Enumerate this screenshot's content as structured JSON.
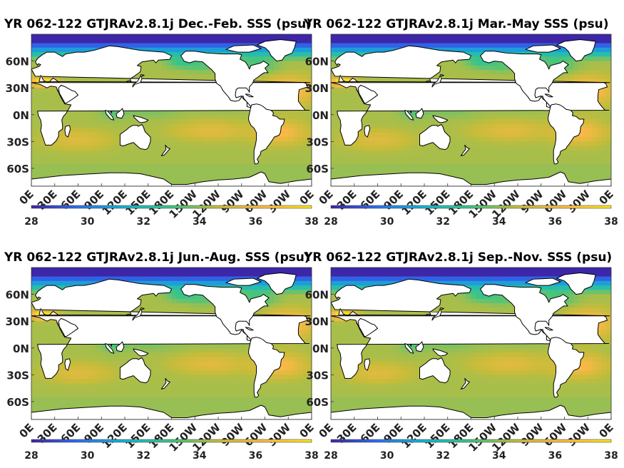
{
  "chart_data": [
    {
      "type": "heatmap",
      "title": "YR 062-122 GTJRAv2.8.1j Dec.-Feb. SSS (psu)",
      "x_tick_labels": [
        "0E",
        "30E",
        "60E",
        "90E",
        "120E",
        "150E",
        "180E",
        "150W",
        "120W",
        "90W",
        "60W",
        "30W",
        "0E"
      ],
      "y_tick_labels": [
        "60N",
        "30N",
        "0N",
        "30S",
        "60S"
      ],
      "colorbar_ticks": [
        28,
        30,
        32,
        34,
        36,
        38
      ],
      "clim": [
        28,
        38
      ],
      "xlim": [
        0,
        360
      ],
      "ylim": [
        -80,
        90
      ],
      "colormap": [
        "#3e26a8",
        "#2f6ef0",
        "#14b5d0",
        "#3ec583",
        "#c6bc3a",
        "#fdb947",
        "#f5e51d"
      ]
    },
    {
      "type": "heatmap",
      "title": "YR 062-122 GTJRAv2.8.1j Mar.-May SSS (psu)",
      "x_tick_labels": [
        "0E",
        "30E",
        "60E",
        "90E",
        "120E",
        "150E",
        "180E",
        "150W",
        "120W",
        "90W",
        "60W",
        "30W",
        "0E"
      ],
      "y_tick_labels": [
        "60N",
        "30N",
        "0N",
        "30S",
        "60S"
      ],
      "colorbar_ticks": [
        28,
        30,
        32,
        34,
        36,
        38
      ],
      "clim": [
        28,
        38
      ],
      "xlim": [
        0,
        360
      ],
      "ylim": [
        -80,
        90
      ],
      "colormap": [
        "#3e26a8",
        "#2f6ef0",
        "#14b5d0",
        "#3ec583",
        "#c6bc3a",
        "#fdb947",
        "#f5e51d"
      ]
    },
    {
      "type": "heatmap",
      "title": "YR 062-122 GTJRAv2.8.1j Jun.-Aug. SSS (psu)",
      "x_tick_labels": [
        "0E",
        "30E",
        "60E",
        "90E",
        "120E",
        "150E",
        "180E",
        "150W",
        "120W",
        "90W",
        "60W",
        "30W",
        "0E"
      ],
      "y_tick_labels": [
        "60N",
        "30N",
        "0N",
        "30S",
        "60S"
      ],
      "colorbar_ticks": [
        28,
        30,
        32,
        34,
        36,
        38
      ],
      "clim": [
        28,
        38
      ],
      "xlim": [
        0,
        360
      ],
      "ylim": [
        -80,
        90
      ],
      "colormap": [
        "#3e26a8",
        "#2f6ef0",
        "#14b5d0",
        "#3ec583",
        "#c6bc3a",
        "#fdb947",
        "#f5e51d"
      ]
    },
    {
      "type": "heatmap",
      "title": "YR 062-122 GTJRAv2.8.1j Sep.-Nov. SSS (psu)",
      "x_tick_labels": [
        "0E",
        "30E",
        "60E",
        "90E",
        "120E",
        "150E",
        "180E",
        "150W",
        "120W",
        "90W",
        "60W",
        "30W",
        "0E"
      ],
      "y_tick_labels": [
        "60N",
        "30N",
        "0N",
        "30S",
        "60S"
      ],
      "colorbar_ticks": [
        28,
        30,
        32,
        34,
        36,
        38
      ],
      "clim": [
        28,
        38
      ],
      "xlim": [
        0,
        360
      ],
      "ylim": [
        -80,
        90
      ],
      "colormap": [
        "#3e26a8",
        "#2f6ef0",
        "#14b5d0",
        "#3ec583",
        "#c6bc3a",
        "#fdb947",
        "#f5e51d"
      ]
    }
  ]
}
